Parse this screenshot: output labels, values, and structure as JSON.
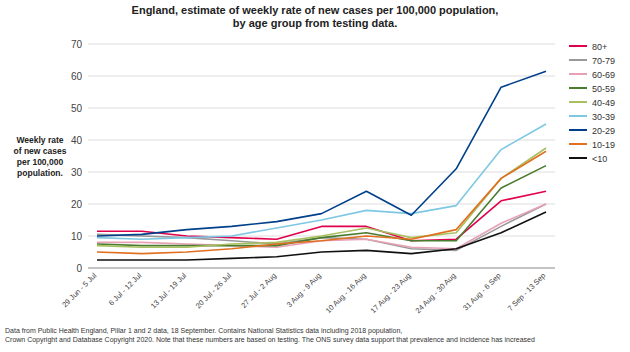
{
  "chart_data": {
    "type": "line",
    "title": "England, estimate of weekly rate of new cases per 100,000 population,\nby age group from testing data.",
    "ylabel": "Weekly rate\nof new cases\nper 100,000\npopulation.",
    "annotations": [
      "Data from Public Health England, Pillar 1 and 2 data, 18 September.  Contains National Statistics data including 2018 population,\nCrown Copyright and Database Copyright 2020. Note that these numbers are based on testing. The ONS survey data support that prevalence and incidence has increased"
    ],
    "categories": [
      "29 Jun - 5 Jul",
      "6 Jul - 12 Jul",
      "13 Jul - 19 Jul",
      "20 Jul - 26 Jul",
      "27 Jul - 2 Aug",
      "3 Aug - 9 Aug",
      "10 Aug - 16 Aug",
      "17 Aug - 23 Aug",
      "24 Aug - 30 Aug",
      "31 Aug - 6 Sep",
      "7 Sep - 13 Sep"
    ],
    "series": [
      {
        "name": "80+",
        "color": "#e0004d",
        "values": [
          11.5,
          11.5,
          10.0,
          9.5,
          9.0,
          13.0,
          13.0,
          8.5,
          9.0,
          21.0,
          24.0
        ]
      },
      {
        "name": "70-79",
        "color": "#999999",
        "values": [
          10.5,
          10.0,
          9.5,
          8.5,
          7.5,
          9.5,
          9.0,
          6.0,
          5.5,
          13.0,
          20.0
        ]
      },
      {
        "name": "60-69",
        "color": "#e8a0b4",
        "values": [
          8.0,
          8.0,
          7.5,
          7.0,
          6.5,
          8.5,
          9.0,
          6.5,
          6.0,
          14.0,
          20.0
        ]
      },
      {
        "name": "50-59",
        "color": "#4a7c2f",
        "values": [
          7.5,
          7.0,
          7.0,
          7.0,
          7.0,
          9.5,
          11.0,
          8.5,
          8.5,
          25.0,
          32.0
        ]
      },
      {
        "name": "40-49",
        "color": "#a8c060",
        "values": [
          7.0,
          6.5,
          6.5,
          7.5,
          8.0,
          10.0,
          12.5,
          9.5,
          11.0,
          28.0,
          37.5
        ]
      },
      {
        "name": "30-39",
        "color": "#7ec8e3",
        "values": [
          9.5,
          9.0,
          9.5,
          10.0,
          12.5,
          15.0,
          18.0,
          17.0,
          19.5,
          37.0,
          45.0
        ]
      },
      {
        "name": "20-29",
        "color": "#003f8a",
        "values": [
          10.0,
          10.5,
          12.0,
          13.0,
          14.5,
          17.0,
          24.0,
          16.5,
          31.0,
          56.5,
          61.5
        ]
      },
      {
        "name": "10-19",
        "color": "#e07020",
        "values": [
          5.0,
          4.5,
          5.0,
          6.0,
          7.5,
          8.5,
          10.0,
          9.0,
          12.0,
          28.0,
          36.5
        ]
      },
      {
        "name": "<10",
        "color": "#111111",
        "values": [
          2.5,
          2.5,
          2.5,
          3.0,
          3.5,
          5.0,
          5.5,
          4.5,
          6.0,
          11.0,
          17.5
        ]
      }
    ],
    "ylim": [
      0,
      70
    ],
    "yticks": [
      0,
      10,
      20,
      30,
      40,
      50,
      60,
      70
    ],
    "grid": true,
    "legend": "right"
  }
}
